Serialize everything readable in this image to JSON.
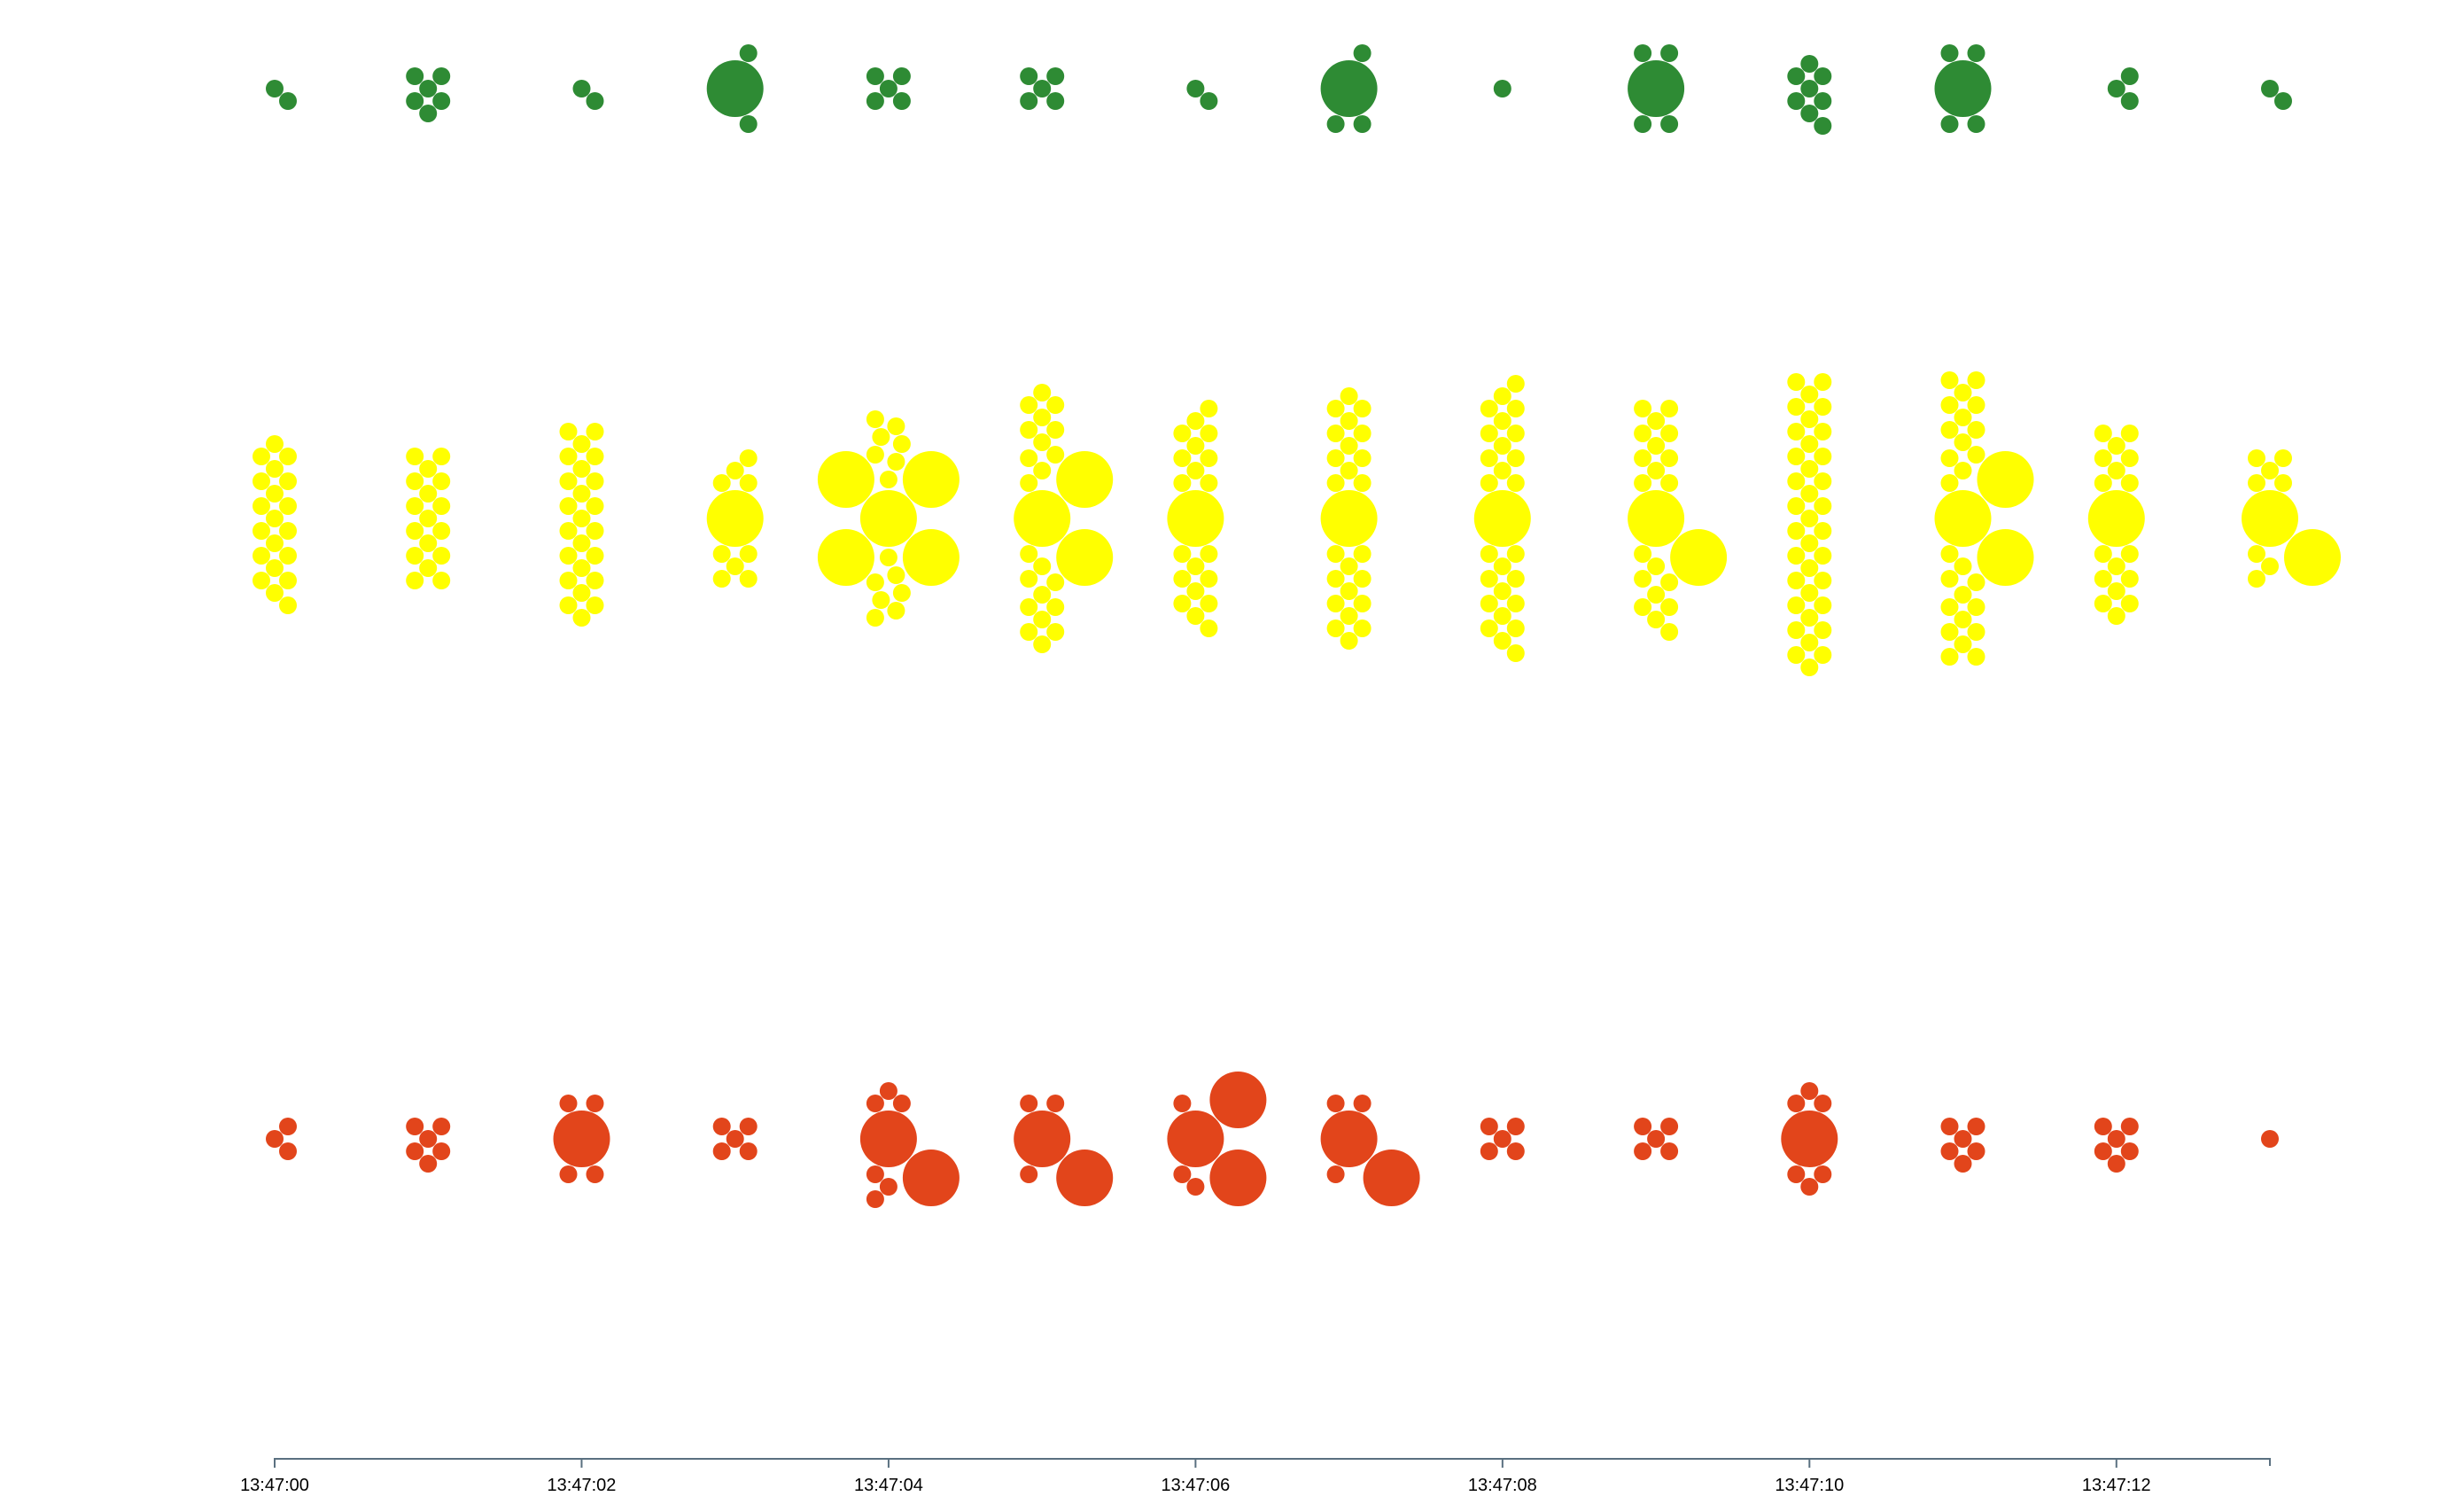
{
  "chart_data": {
    "type": "scatter",
    "subtype": "beeswarm",
    "title": "",
    "xlabel": "",
    "ylabel": "",
    "x_ticks": [
      "13:47:00",
      "13:47:02",
      "13:47:04",
      "13:47:06",
      "13:47:08",
      "13:47:10",
      "13:47:12"
    ],
    "x_range": [
      "13:47:00",
      "13:47:13"
    ],
    "point_size_levels": {
      "small": 1,
      "large": 3.5
    },
    "series": [
      {
        "name": "",
        "color": "#2e8b34",
        "points": [
          {
            "x": "13:47:00",
            "small": 2,
            "large": 0
          },
          {
            "x": "13:47:01",
            "small": 6,
            "large": 0
          },
          {
            "x": "13:47:02",
            "small": 2,
            "large": 0
          },
          {
            "x": "13:47:03",
            "small": 2,
            "large": 1
          },
          {
            "x": "13:47:04",
            "small": 5,
            "large": 0
          },
          {
            "x": "13:47:05",
            "small": 5,
            "large": 0
          },
          {
            "x": "13:47:06",
            "small": 2,
            "large": 0
          },
          {
            "x": "13:47:07",
            "small": 3,
            "large": 1
          },
          {
            "x": "13:47:08",
            "small": 1,
            "large": 0
          },
          {
            "x": "13:47:09",
            "small": 4,
            "large": 1
          },
          {
            "x": "13:47:10",
            "small": 8,
            "large": 0
          },
          {
            "x": "13:47:11",
            "small": 4,
            "large": 1
          },
          {
            "x": "13:47:12",
            "small": 3,
            "large": 0
          },
          {
            "x": "13:47:13",
            "small": 2,
            "large": 0
          }
        ]
      },
      {
        "name": "",
        "color": "#ffff00",
        "points": [
          {
            "x": "13:47:00",
            "small": 20,
            "large": 0
          },
          {
            "x": "13:47:01",
            "small": 17,
            "large": 0
          },
          {
            "x": "13:47:02",
            "small": 24,
            "large": 0
          },
          {
            "x": "13:47:03",
            "small": 9,
            "large": 1
          },
          {
            "x": "13:47:04",
            "small": 14,
            "large": 5
          },
          {
            "x": "13:47:05",
            "small": 22,
            "large": 3
          },
          {
            "x": "13:47:06",
            "small": 20,
            "large": 1
          },
          {
            "x": "13:47:07",
            "small": 24,
            "large": 1
          },
          {
            "x": "13:47:08",
            "small": 26,
            "large": 1
          },
          {
            "x": "13:47:09",
            "small": 20,
            "large": 2
          },
          {
            "x": "13:47:10",
            "small": 36,
            "large": 0
          },
          {
            "x": "13:47:11",
            "small": 26,
            "large": 3
          },
          {
            "x": "13:47:12",
            "small": 17,
            "large": 1
          },
          {
            "x": "13:47:13",
            "small": 8,
            "large": 2
          }
        ]
      },
      {
        "name": "",
        "color": "#e2451b",
        "points": [
          {
            "x": "13:47:00",
            "small": 3,
            "large": 0
          },
          {
            "x": "13:47:01",
            "small": 6,
            "large": 0
          },
          {
            "x": "13:47:02",
            "small": 4,
            "large": 1
          },
          {
            "x": "13:47:03",
            "small": 5,
            "large": 0
          },
          {
            "x": "13:47:04",
            "small": 6,
            "large": 2
          },
          {
            "x": "13:47:05",
            "small": 3,
            "large": 2
          },
          {
            "x": "13:47:06",
            "small": 3,
            "large": 3
          },
          {
            "x": "13:47:07",
            "small": 3,
            "large": 2
          },
          {
            "x": "13:47:08",
            "small": 5,
            "large": 0
          },
          {
            "x": "13:47:09",
            "small": 5,
            "large": 0
          },
          {
            "x": "13:47:10",
            "small": 6,
            "large": 1
          },
          {
            "x": "13:47:11",
            "small": 6,
            "large": 0
          },
          {
            "x": "13:47:12",
            "small": 6,
            "large": 0
          },
          {
            "x": "13:47:13",
            "small": 1,
            "large": 0
          }
        ]
      }
    ],
    "grid": false,
    "legend": "none"
  }
}
